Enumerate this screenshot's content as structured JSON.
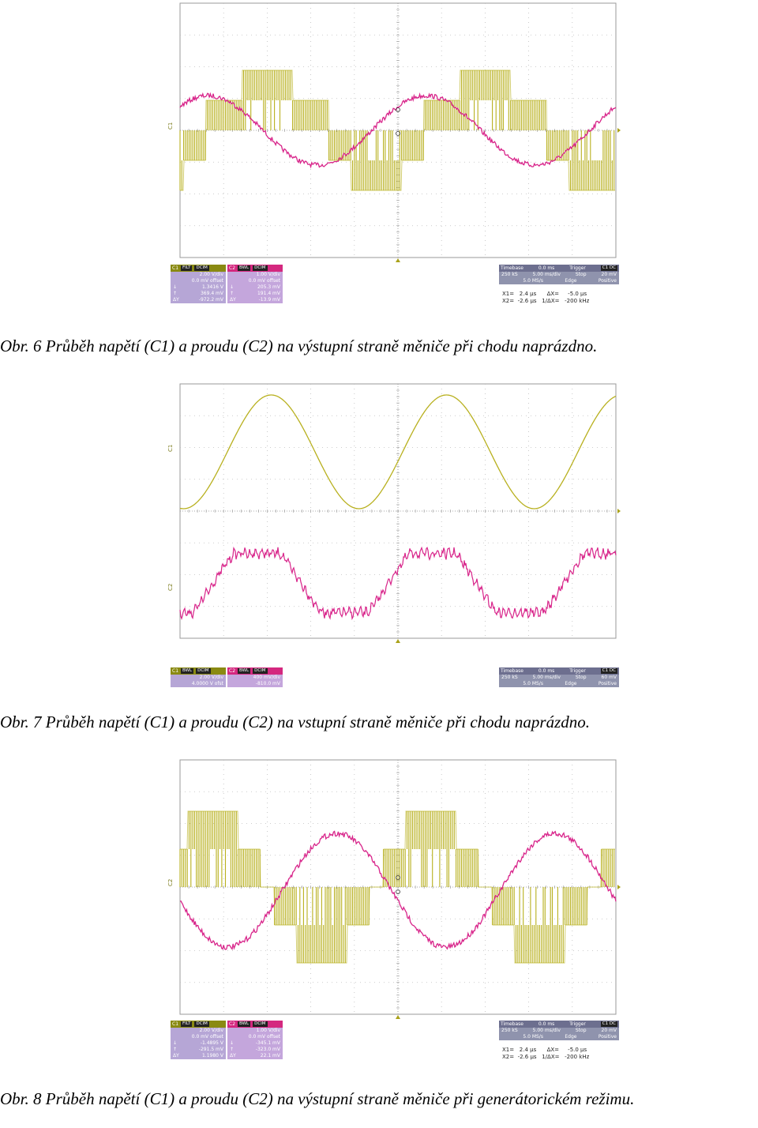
{
  "figures": [
    {
      "caption": "Obr. 6 Průběh napětí (C1) a proudu (C2) na výstupní straně měniče při chodu naprázdno.",
      "trace_labels": [
        "C1"
      ],
      "c1_panel": {
        "title": "C1",
        "chips": [
          "FILT",
          "DCIM"
        ],
        "rows": [
          [
            "",
            "2.00 V/div"
          ],
          [
            "",
            "0.0 mV offset"
          ],
          [
            "↓",
            "1.3416 V"
          ],
          [
            "↑",
            "369.4 mV"
          ],
          [
            "ΔY",
            "-972.2 mV"
          ]
        ]
      },
      "c2_panel": {
        "title": "C2",
        "chips": [
          "BWL",
          "DCIM"
        ],
        "rows": [
          [
            "",
            "1.00 V/div"
          ],
          [
            "",
            "0.0 mV offset"
          ],
          [
            "↓",
            "205.3 mV"
          ],
          [
            "↑",
            "191.4 mV"
          ],
          [
            "ΔY",
            "-13.9 mV"
          ]
        ]
      },
      "timebase": {
        "rows": [
          [
            "Timebase",
            "0.0 ms",
            "Trigger",
            "C1 DC"
          ],
          [
            "250 kS",
            "5.00 ms/div",
            "Stop",
            "20 mV"
          ],
          [
            "",
            "5.0 MS/s",
            "Edge",
            "Positive"
          ]
        ]
      },
      "cursor_lines": [
        "X1=   2.4 µs      ΔX=     -5.0 µs",
        "X2=  -2.6 µs   1/ΔX=   -200 kHz"
      ]
    },
    {
      "caption": "Obr. 7 Průběh napětí (C1) a proudu (C2) na vstupní straně měniče při chodu naprázdno.",
      "trace_labels": [
        "C1",
        "C2"
      ],
      "c1_panel": {
        "title": "C1",
        "chips": [
          "BWL",
          "DCIM"
        ],
        "rows": [
          [
            "",
            "2.00 V/div"
          ],
          [
            "",
            "4.0000 V ofst"
          ]
        ]
      },
      "c2_panel": {
        "title": "C2",
        "chips": [
          "BWL",
          "DCIM"
        ],
        "rows": [
          [
            "",
            "400 mV/div"
          ],
          [
            "",
            "-810.0 mV"
          ]
        ]
      },
      "timebase": {
        "rows": [
          [
            "Timebase",
            "0.0 ms",
            "Trigger",
            "C1 DC"
          ],
          [
            "250 kS",
            "5.00 ms/div",
            "Stop",
            "60 mV"
          ],
          [
            "",
            "5.0 MS/s",
            "Edge",
            "Positive"
          ]
        ]
      },
      "cursor_lines": []
    },
    {
      "caption": "Obr. 8 Průběh napětí (C1) a proudu (C2) na výstupní straně měniče při generátorickém režimu.",
      "trace_labels": [
        "C2"
      ],
      "c1_panel": {
        "title": "C1",
        "chips": [
          "FILT",
          "DCIM"
        ],
        "rows": [
          [
            "",
            "2.00 V/div"
          ],
          [
            "",
            "0.0 mV offset"
          ],
          [
            "↓",
            "-1.4895 V"
          ],
          [
            "↑",
            "-291.5 mV"
          ],
          [
            "ΔY",
            "1.1980 V"
          ]
        ]
      },
      "c2_panel": {
        "title": "C2",
        "chips": [
          "BWL",
          "DCIM"
        ],
        "rows": [
          [
            "",
            "1.00 V/div"
          ],
          [
            "",
            "0.0 mV offset"
          ],
          [
            "↓",
            "-345.1 mV"
          ],
          [
            "↑",
            "-323.0 mV"
          ],
          [
            "ΔY",
            "22.1 mV"
          ]
        ]
      },
      "timebase": {
        "rows": [
          [
            "Timebase",
            "0.0 ms",
            "Trigger",
            "C1 DC"
          ],
          [
            "250 kS",
            "5.00 ms/div",
            "Stop",
            "20 mV"
          ],
          [
            "",
            "5.0 MS/s",
            "Edge",
            "Positive"
          ]
        ]
      },
      "cursor_lines": [
        "X1=   2.4 µs      ΔX=     -5.0 µs",
        "X2=  -2.6 µs   1/ΔX=   -200 kHz"
      ]
    }
  ],
  "colors": {
    "c1": "#b8b01e",
    "c2": "#d8248a",
    "grid": "#bdbdbd",
    "border": "#9a9a9a"
  }
}
